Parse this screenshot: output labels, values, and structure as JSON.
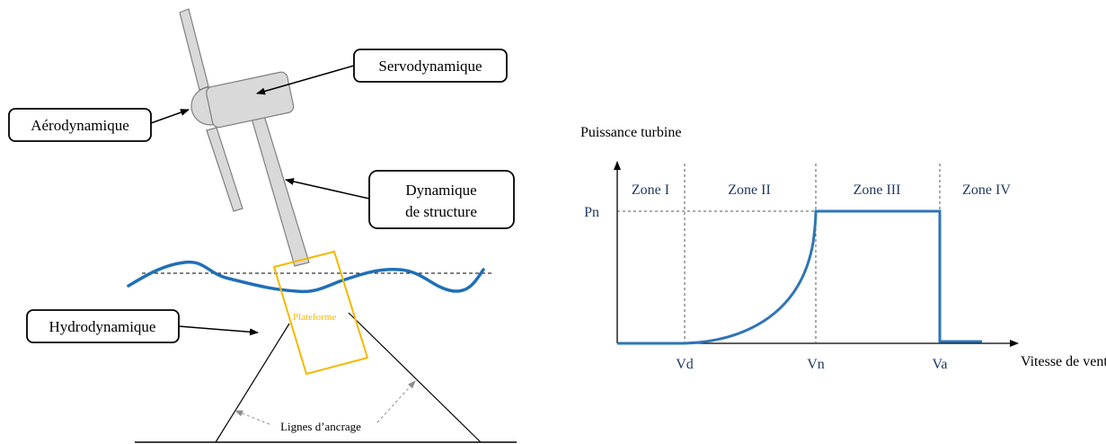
{
  "turbine_diagram": {
    "labels": {
      "servodynamique": "Servodynamique",
      "aerodynamique": "Aérodynamique",
      "dynamique_line1": "Dynamique",
      "dynamique_line2": "de structure",
      "hydrodynamique": "Hydrodynamique",
      "plateforme": "Plateforme",
      "lignes": "Lignes d’ancrage"
    },
    "colors": {
      "turbine_gray": "#d9d9d9",
      "turbine_outline": "#7f7f7f",
      "wave_blue": "#1f6fb7",
      "platform_orange": "#f5b800",
      "box_outline": "#000000"
    }
  },
  "power_curve": {
    "ylabel": "Puissance turbine",
    "xlabel": "Vitesse de vent",
    "zones": [
      "Zone I",
      "Zone II",
      "Zone III",
      "Zone IV"
    ],
    "y_tick": "Pn",
    "x_ticks": [
      "Vd",
      "Vn",
      "Va"
    ],
    "colors": {
      "curve": "#2e75b6",
      "text": "#1f3864"
    }
  }
}
